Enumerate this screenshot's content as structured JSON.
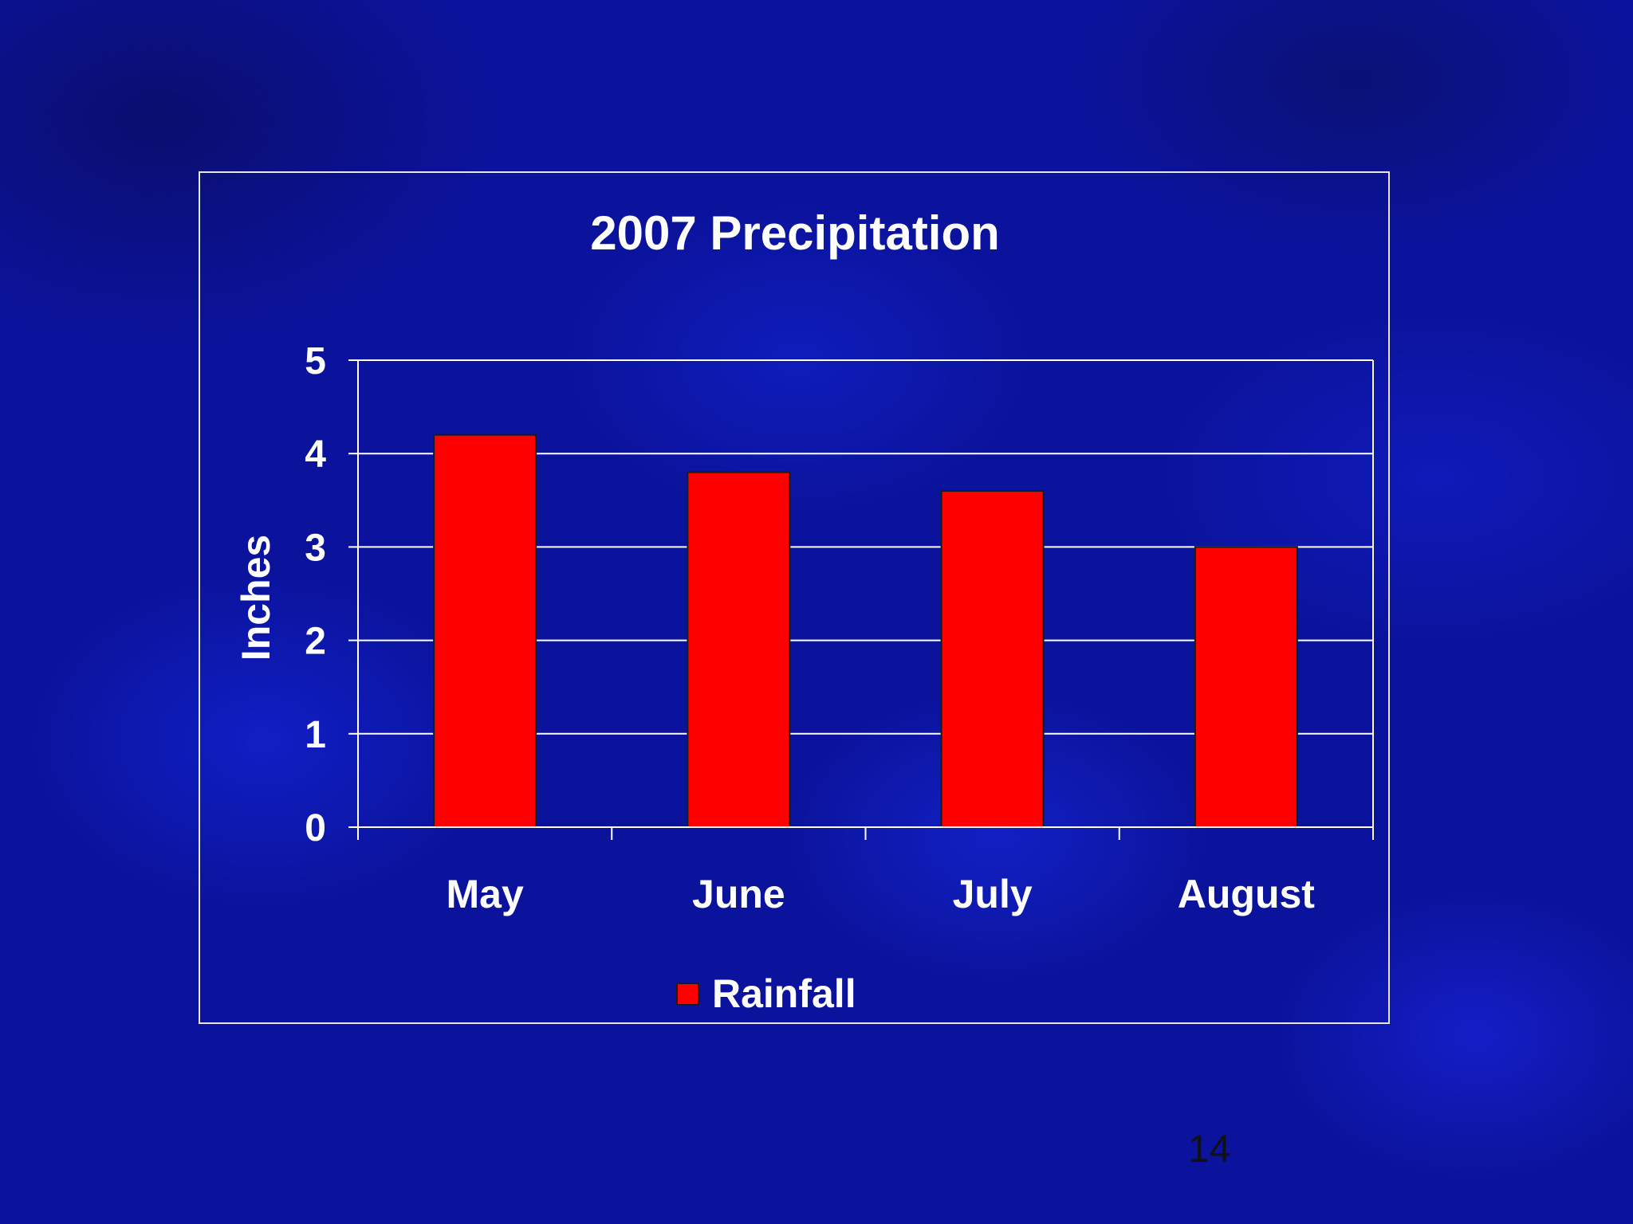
{
  "slide": {
    "page_number": "14"
  },
  "chart_data": {
    "type": "bar",
    "title": "2007 Precipitation",
    "xlabel": "",
    "ylabel": "Inches",
    "categories": [
      "May",
      "June",
      "July",
      "August"
    ],
    "series": [
      {
        "name": "Rainfall",
        "values": [
          4.2,
          3.8,
          3.6,
          3.0
        ],
        "color": "#ff0000"
      }
    ],
    "ylim": [
      0,
      5
    ],
    "yticks": [
      "0",
      "1",
      "2",
      "3",
      "4",
      "5"
    ],
    "grid": true,
    "legend_position": "bottom"
  }
}
